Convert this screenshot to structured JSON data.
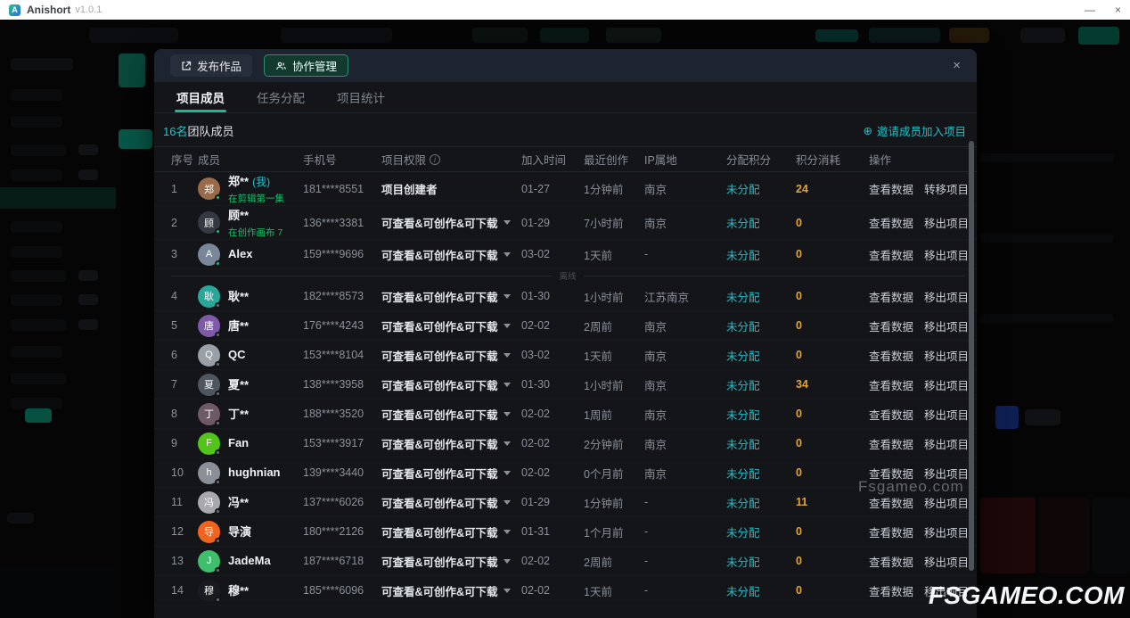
{
  "titlebar": {
    "app_name": "Anishort",
    "version": "v1.0.1",
    "minimize": "—",
    "close": "×"
  },
  "modal": {
    "header_buttons": {
      "publish": "发布作品",
      "collab": "协作管理"
    },
    "close": "×",
    "tabs": [
      {
        "label": "项目成员"
      },
      {
        "label": "任务分配"
      },
      {
        "label": "项目统计"
      }
    ],
    "member_count": {
      "count": "16名",
      "label": "团队成员"
    },
    "invite": {
      "icon": "⊕",
      "label": "邀请成员加入项目"
    },
    "table": {
      "headers": [
        "序号",
        "成员",
        "手机号",
        "项目权限",
        "加入时间",
        "最近创作",
        "IP属地",
        "分配积分",
        "积分消耗",
        "操作"
      ],
      "perm_info_icon": "i",
      "divider": {
        "after_index": 2,
        "label": "离线"
      },
      "rows": [
        {
          "seq": "1",
          "name": "郑**",
          "tag": "(我)",
          "note": "在剪辑第一集",
          "avatar": {
            "bg": "#9a6b4a",
            "text": "郑"
          },
          "online": true,
          "phone": "181****8551",
          "perm": "项目创建者",
          "dropdown": false,
          "joined": "01-27",
          "recent": "1分钟前",
          "ip": "南京",
          "alloc": "未分配",
          "points": "24",
          "actions": [
            "查看数据",
            "转移项目"
          ]
        },
        {
          "seq": "2",
          "name": "顾**",
          "tag": "",
          "note": "在创作画布 7",
          "avatar": {
            "bg": "#343943",
            "text": "顾"
          },
          "online": true,
          "phone": "136****3381",
          "perm": "可查看&可创作&可下载",
          "dropdown": true,
          "joined": "01-29",
          "recent": "7小时前",
          "ip": "南京",
          "alloc": "未分配",
          "points": "0",
          "actions": [
            "查看数据",
            "移出项目"
          ]
        },
        {
          "seq": "3",
          "name": "Alex",
          "tag": "",
          "note": "",
          "avatar": {
            "bg": "#7a8699",
            "text": "A"
          },
          "online": true,
          "phone": "159****9696",
          "perm": "可查看&可创作&可下载",
          "dropdown": true,
          "joined": "03-02",
          "recent": "1天前",
          "ip": "-",
          "alloc": "未分配",
          "points": "0",
          "actions": [
            "查看数据",
            "移出项目"
          ]
        },
        {
          "seq": "4",
          "name": "耿**",
          "tag": "",
          "note": "",
          "avatar": {
            "bg": "#2aa79b",
            "text": "耿"
          },
          "online": false,
          "phone": "182****8573",
          "perm": "可查看&可创作&可下载",
          "dropdown": true,
          "joined": "01-30",
          "recent": "1小时前",
          "ip": "江苏南京",
          "alloc": "未分配",
          "points": "0",
          "actions": [
            "查看数据",
            "移出项目"
          ]
        },
        {
          "seq": "5",
          "name": "唐**",
          "tag": "",
          "note": "",
          "avatar": {
            "bg": "#7e5aa8",
            "text": "唐"
          },
          "online": false,
          "phone": "176****4243",
          "perm": "可查看&可创作&可下载",
          "dropdown": true,
          "joined": "02-02",
          "recent": "2周前",
          "ip": "南京",
          "alloc": "未分配",
          "points": "0",
          "actions": [
            "查看数据",
            "移出项目"
          ]
        },
        {
          "seq": "6",
          "name": "QC",
          "tag": "",
          "note": "",
          "avatar": {
            "bg": "#9aa0a8",
            "text": "Q"
          },
          "online": false,
          "phone": "153****8104",
          "perm": "可查看&可创作&可下载",
          "dropdown": true,
          "joined": "03-02",
          "recent": "1天前",
          "ip": "南京",
          "alloc": "未分配",
          "points": "0",
          "actions": [
            "查看数据",
            "移出项目"
          ]
        },
        {
          "seq": "7",
          "name": "夏**",
          "tag": "",
          "note": "",
          "avatar": {
            "bg": "#50565f",
            "text": "夏"
          },
          "online": false,
          "phone": "138****3958",
          "perm": "可查看&可创作&可下载",
          "dropdown": true,
          "joined": "01-30",
          "recent": "1小时前",
          "ip": "南京",
          "alloc": "未分配",
          "points": "34",
          "actions": [
            "查看数据",
            "移出项目"
          ]
        },
        {
          "seq": "8",
          "name": "丁**",
          "tag": "",
          "note": "",
          "avatar": {
            "bg": "#6e5a66",
            "text": "丁"
          },
          "online": false,
          "phone": "188****3520",
          "perm": "可查看&可创作&可下载",
          "dropdown": true,
          "joined": "02-02",
          "recent": "1周前",
          "ip": "南京",
          "alloc": "未分配",
          "points": "0",
          "actions": [
            "查看数据",
            "移出项目"
          ]
        },
        {
          "seq": "9",
          "name": "Fan",
          "tag": "",
          "note": "",
          "avatar": {
            "bg": "#52c41a",
            "text": "F"
          },
          "online": false,
          "phone": "153****3917",
          "perm": "可查看&可创作&可下载",
          "dropdown": true,
          "joined": "02-02",
          "recent": "2分钟前",
          "ip": "南京",
          "alloc": "未分配",
          "points": "0",
          "actions": [
            "查看数据",
            "移出项目"
          ]
        },
        {
          "seq": "10",
          "name": "hughnian",
          "tag": "",
          "note": "",
          "avatar": {
            "bg": "#8a8f98",
            "text": "h"
          },
          "online": false,
          "phone": "139****3440",
          "perm": "可查看&可创作&可下载",
          "dropdown": true,
          "joined": "02-02",
          "recent": "0个月前",
          "ip": "南京",
          "alloc": "未分配",
          "points": "0",
          "actions": [
            "查看数据",
            "移出项目"
          ]
        },
        {
          "seq": "11",
          "name": "冯**",
          "tag": "",
          "note": "",
          "avatar": {
            "bg": "#a9a9ad",
            "text": "冯"
          },
          "online": false,
          "phone": "137****6026",
          "perm": "可查看&可创作&可下载",
          "dropdown": true,
          "joined": "01-29",
          "recent": "1分钟前",
          "ip": "-",
          "alloc": "未分配",
          "points": "11",
          "actions": [
            "查看数据",
            "移出项目"
          ]
        },
        {
          "seq": "12",
          "name": "导演",
          "tag": "",
          "note": "",
          "avatar": {
            "bg": "#f0651e",
            "text": "导"
          },
          "online": false,
          "phone": "180****2126",
          "perm": "可查看&可创作&可下载",
          "dropdown": true,
          "joined": "01-31",
          "recent": "1个月前",
          "ip": "-",
          "alloc": "未分配",
          "points": "0",
          "actions": [
            "查看数据",
            "移出项目"
          ]
        },
        {
          "seq": "13",
          "name": "JadeMa",
          "tag": "",
          "note": "",
          "avatar": {
            "bg": "#3fbf6b",
            "text": "J"
          },
          "online": false,
          "phone": "187****6718",
          "perm": "可查看&可创作&可下载",
          "dropdown": true,
          "joined": "02-02",
          "recent": "2周前",
          "ip": "-",
          "alloc": "未分配",
          "points": "0",
          "actions": [
            "查看数据",
            "移出项目"
          ]
        },
        {
          "seq": "14",
          "name": "穆**",
          "tag": "",
          "note": "",
          "avatar": {
            "bg": "#1a1b1e",
            "text": "穆"
          },
          "online": false,
          "phone": "185****6096",
          "perm": "可查看&可创作&可下载",
          "dropdown": true,
          "joined": "02-02",
          "recent": "1天前",
          "ip": "-",
          "alloc": "未分配",
          "points": "0",
          "actions": [
            "查看数据",
            "移出项目"
          ]
        }
      ]
    }
  },
  "watermarks": {
    "small": "Fsgameo.com",
    "large": "FSGAMEO.COM"
  },
  "colors": {
    "accent_teal": "#21b58e",
    "accent_cyan": "#25c3cb",
    "points_yellow": "#e0a63a",
    "online_green": "#19be6b",
    "modal_bg": "#131519",
    "modal_header_bg": "#1d2430"
  }
}
